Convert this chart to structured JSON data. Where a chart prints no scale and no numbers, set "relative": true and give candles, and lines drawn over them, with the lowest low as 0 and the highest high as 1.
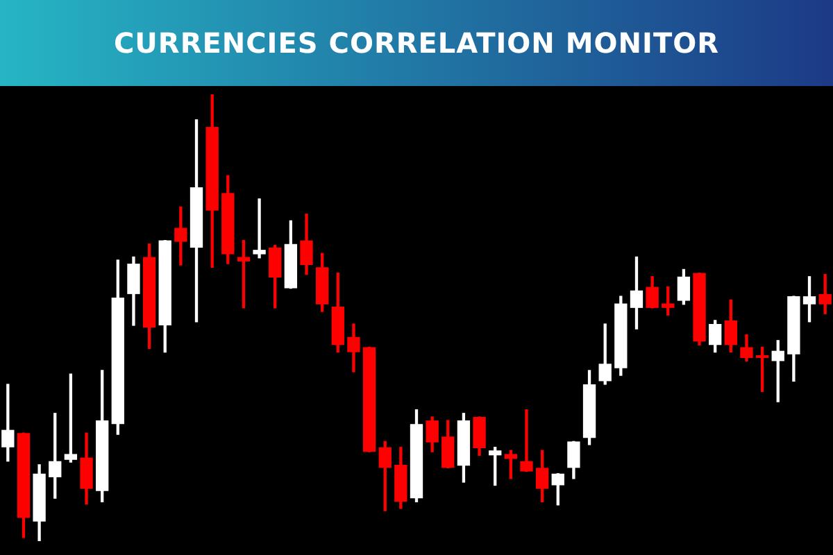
{
  "chart_data": {
    "type": "candlestick",
    "title": "CURRENCIES CORRELATION MONITOR",
    "relative": true,
    "legend": false,
    "categories": [
      null,
      null,
      null,
      null,
      null,
      null,
      null,
      null,
      null,
      null,
      null,
      null,
      null,
      null,
      null,
      null,
      null,
      null,
      null,
      null,
      null,
      null,
      null,
      null,
      null,
      null,
      null,
      null,
      null,
      null,
      null,
      null,
      null,
      null,
      null,
      null,
      null,
      null,
      null,
      null,
      null,
      null,
      null,
      null,
      null,
      null,
      null,
      null,
      null,
      null,
      null,
      null,
      null
    ],
    "ohlc": [
      [
        0.21,
        0.351,
        0.179,
        0.249
      ],
      [
        0.242,
        0.242,
        0.008,
        0.052
      ],
      [
        0.044,
        0.171,
        0,
        0.151
      ],
      [
        0.143,
        0.286,
        0.096,
        0.179
      ],
      [
        0.182,
        0.374,
        0.177,
        0.195
      ],
      [
        0.187,
        0.242,
        0.083,
        0.117
      ],
      [
        0.112,
        0.382,
        0.088,
        0.27
      ],
      [
        0.262,
        0.629,
        0.239,
        0.545
      ],
      [
        0.553,
        0.636,
        0.483,
        0.621
      ],
      [
        0.636,
        0.665,
        0.431,
        0.478
      ],
      [
        0.483,
        0.673,
        0.423,
        0.673
      ],
      [
        0.701,
        0.748,
        0.618,
        0.67
      ],
      [
        0.657,
        0.943,
        0.491,
        0.792
      ],
      [
        0.927,
        1,
        0.613,
        0.74
      ],
      [
        0.779,
        0.818,
        0.621,
        0.642
      ],
      [
        0.636,
        0.673,
        0.522,
        0.626
      ],
      [
        0.642,
        0.766,
        0.634,
        0.652
      ],
      [
        0.657,
        0.662,
        0.522,
        0.59
      ],
      [
        0.566,
        0.717,
        0.566,
        0.665
      ],
      [
        0.673,
        0.732,
        0.597,
        0.618
      ],
      [
        0.613,
        0.644,
        0.514,
        0.53
      ],
      [
        0.525,
        0.6,
        0.423,
        0.439
      ],
      [
        0.457,
        0.486,
        0.379,
        0.423
      ],
      [
        0.434,
        0.434,
        0.2,
        0.2
      ],
      [
        0.21,
        0.223,
        0.068,
        0.164
      ],
      [
        0.171,
        0.21,
        0.073,
        0.088
      ],
      [
        0.096,
        0.294,
        0.088,
        0.262
      ],
      [
        0.27,
        0.278,
        0.2,
        0.221
      ],
      [
        0.234,
        0.27,
        0.164,
        0.164
      ],
      [
        0.169,
        0.286,
        0.132,
        0.27
      ],
      [
        0.278,
        0.278,
        0.192,
        0.208
      ],
      [
        0.192,
        0.21,
        0.125,
        0.203
      ],
      [
        0.195,
        0.203,
        0.14,
        0.184
      ],
      [
        0.179,
        0.294,
        0.156,
        0.156
      ],
      [
        0.164,
        0.203,
        0.088,
        0.117
      ],
      [
        0.125,
        0.151,
        0.081,
        0.151
      ],
      [
        0.164,
        0.223,
        0.14,
        0.223
      ],
      [
        0.231,
        0.382,
        0.216,
        0.351
      ],
      [
        0.358,
        0.486,
        0.351,
        0.397
      ],
      [
        0.387,
        0.548,
        0.371,
        0.532
      ],
      [
        0.522,
        0.636,
        0.475,
        0.561
      ],
      [
        0.569,
        0.592,
        0.522,
        0.522
      ],
      [
        0.532,
        0.569,
        0.506,
        0.522
      ],
      [
        0.538,
        0.608,
        0.53,
        0.592
      ],
      [
        0.6,
        0.6,
        0.439,
        0.447
      ],
      [
        0.439,
        0.494,
        0.423,
        0.486
      ],
      [
        0.494,
        0.54,
        0.423,
        0.439
      ],
      [
        0.434,
        0.462,
        0.403,
        0.41
      ],
      [
        0.416,
        0.434,
        0.335,
        0.41
      ],
      [
        0.403,
        0.449,
        0.312,
        0.426
      ],
      [
        0.418,
        0.548,
        0.358,
        0.548
      ],
      [
        0.53,
        0.592,
        0.491,
        0.548
      ],
      [
        0.553,
        0.597,
        0.509,
        0.53
      ]
    ],
    "colors": [
      "#ffffff",
      "#ff0000",
      "#ffffff",
      "#ffffff",
      "#ffffff",
      "#ff0000",
      "#ffffff",
      "#ffffff",
      "#ffffff",
      "#ff0000",
      "#ffffff",
      "#ff0000",
      "#ffffff",
      "#ff0000",
      "#ff0000",
      "#ff0000",
      "#ffffff",
      "#ff0000",
      "#ffffff",
      "#ff0000",
      "#ff0000",
      "#ff0000",
      "#ff0000",
      "#ff0000",
      "#ff0000",
      "#ff0000",
      "#ffffff",
      "#ff0000",
      "#ff0000",
      "#ffffff",
      "#ff0000",
      "#ffffff",
      "#ff0000",
      "#ff0000",
      "#ff0000",
      "#ffffff",
      "#ffffff",
      "#ffffff",
      "#ffffff",
      "#ffffff",
      "#ffffff",
      "#ff0000",
      "#ff0000",
      "#ffffff",
      "#ff0000",
      "#ffffff",
      "#ff0000",
      "#ff0000",
      "#ff0000",
      "#ffffff",
      "#ffffff",
      "#ffffff",
      "#ff0000"
    ]
  }
}
